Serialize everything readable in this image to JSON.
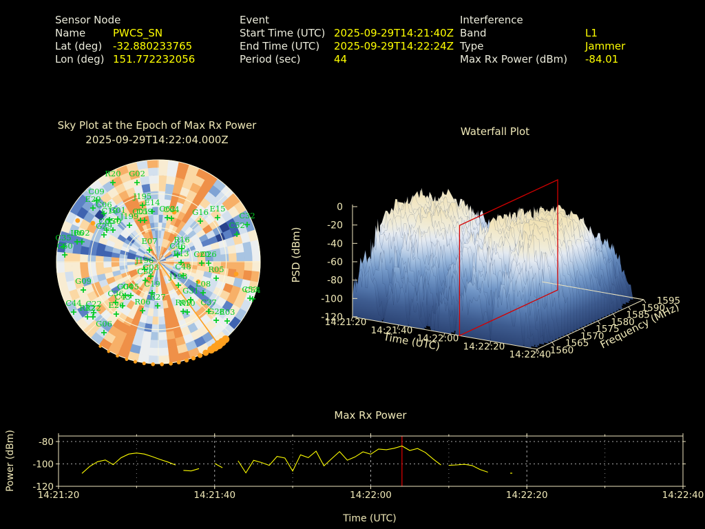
{
  "colors": {
    "background": "#000000",
    "header_label": "#ebebdb",
    "header_value": "#ffff00",
    "plot_text": "#f0e9b8",
    "axis_line": "#efe6c0",
    "grid_dots": "#c8c8c8",
    "satellite_green": "#00cc22",
    "orange_marker": "#ffa01e",
    "series_yellow": "#ffff00",
    "highlight_red": "#d40000"
  },
  "header": {
    "columns": [
      {
        "title": "Sensor Node",
        "rows": [
          {
            "label": "Name",
            "value": "PWCS_SN"
          },
          {
            "label": "Lat (deg)",
            "value": "-32.880233765"
          },
          {
            "label": "Lon (deg)",
            "value": "151.772232056"
          }
        ]
      },
      {
        "title": "Event",
        "rows": [
          {
            "label": "Start Time (UTC)",
            "value": "2025-09-29T14:21:40Z"
          },
          {
            "label": "End Time (UTC)",
            "value": "2025-09-29T14:22:24Z"
          },
          {
            "label": "Period (sec)",
            "value": "44"
          }
        ]
      },
      {
        "title": "Interference",
        "rows": [
          {
            "label": "Band",
            "value": "L1"
          },
          {
            "label": "Type",
            "value": "Jammer"
          },
          {
            "label": "Max Rx Power (dBm)",
            "value": "-84.01"
          }
        ]
      }
    ]
  },
  "chart_data": [
    {
      "type": "heatmap",
      "subtype": "polar-skyplot",
      "title_line1": "Sky Plot at the Epoch of Max Rx Power",
      "title_line2": "2025-09-29T14:22:04.000Z",
      "elevation_rings_deg": [
        0,
        30,
        60
      ],
      "azimuth_spokes_deg": [
        0,
        45,
        90,
        135,
        180,
        225,
        270,
        315
      ],
      "palette": [
        "#27418c",
        "#3f63b0",
        "#5b80c4",
        "#7fa3d4",
        "#a8c4e2",
        "#d3e0ee",
        "#eceff0",
        "#f8ecd2",
        "#fbd8a4",
        "#f7b068",
        "#ef9048"
      ],
      "heatmap": {
        "az_bins": 60,
        "el_bins": 13,
        "encoding": "palette index 0-10, rows outer ring last",
        "rows": [
          "25a88a347651346aa68724676778a44679aa7866587996034630378aa834",
          "3599aa569924868a98584365888aa5436996486679456820385368aa7843",
          "558889438442675965453046865aa53359aa76967868a942553557598853",
          "4599aa635664775a97783357988aa68548897578aa774711365457699a43",
          "648789444753555898753388966aa663278a99a8795455426531457a8934",
          "3589a9564666698987773155765a854548666574784799247726666aaa45",
          "58889a545732643784683267767aa6575a79587269786413675535598853",
          "66a68a688a52744896554285647aa5856a766896854888117655748aa966",
          "64a98a656830654987675399776aa4524a987887995664224434535aa744",
          "84978a8686025789a7a86586647a96465aaa769787399713795056898627",
          "87989a5565118649949925677769a5565a99345477877822783438787756",
          "76a88a3597356448a68876663248a6663a98586278657842461355498975",
          "76a8aa469833766798654157579aa7568a9a487547776512752246789859"
        ]
      },
      "satellites": [
        {
          "id": "R20",
          "az": 330.1,
          "el": 9.4
        },
        {
          "id": "G02",
          "az": 344.9,
          "el": 17.6
        },
        {
          "id": "C09",
          "az": 314.7,
          "el": 13.0
        },
        {
          "id": "E29",
          "az": 309.4,
          "el": 15.3
        },
        {
          "id": "C06",
          "az": 311.5,
          "el": 25.8
        },
        {
          "id": "C10",
          "az": 310.7,
          "el": 33.1
        },
        {
          "id": "G01",
          "az": 316.4,
          "el": 38.0
        },
        {
          "id": "J195",
          "az": 344.3,
          "el": 38.2
        },
        {
          "id": "E14",
          "az": 353.0,
          "el": 45.3
        },
        {
          "id": "C01",
          "az": 336.6,
          "el": 50.2
        },
        {
          "id": "C59",
          "az": 341.6,
          "el": 51.5
        },
        {
          "id": "J199",
          "az": 321.6,
          "el": 48.9
        },
        {
          "id": "C05",
          "az": 301.5,
          "el": 36.5
        },
        {
          "id": "G30",
          "az": 304.9,
          "el": 41.1
        },
        {
          "id": "G29",
          "az": 296.3,
          "el": 36.4
        },
        {
          "id": "C62",
          "az": 11.5,
          "el": 50.3
        },
        {
          "id": "C64",
          "az": 16.8,
          "el": 50.0
        },
        {
          "id": "G16",
          "az": 46.0,
          "el": 38.4
        },
        {
          "id": "E15",
          "az": 53.3,
          "el": 24.8
        },
        {
          "id": "C32",
          "az": 67.3,
          "el": 5.0
        },
        {
          "id": "C52",
          "az": 70.7,
          "el": 16.5
        },
        {
          "id": "I06",
          "az": 283.8,
          "el": 16.1
        },
        {
          "id": "R02",
          "az": 284.6,
          "el": 20.2
        },
        {
          "id": "C35",
          "az": 279.1,
          "el": 5.0
        },
        {
          "id": "C60",
          "az": 274.2,
          "el": 7.1
        },
        {
          "id": "E07",
          "az": 322.6,
          "el": 77.0
        },
        {
          "id": "R16",
          "az": 60.8,
          "el": 66.3
        },
        {
          "id": "C46",
          "az": 70.3,
          "el": 71.9
        },
        {
          "id": "E13",
          "az": 91.7,
          "el": 69.9
        },
        {
          "id": "C20",
          "az": 91.8,
          "el": 51.7
        },
        {
          "id": "C26",
          "az": 91.6,
          "el": 45.6
        },
        {
          "id": "J196",
          "az": 241.2,
          "el": 76.1
        },
        {
          "id": "G03",
          "az": 207.6,
          "el": 75.6
        },
        {
          "id": "C38",
          "az": 215.1,
          "el": 69.9
        },
        {
          "id": "C48",
          "az": 119.1,
          "el": 65.0
        },
        {
          "id": "G09",
          "az": 249.4,
          "el": 19.2
        },
        {
          "id": "C19",
          "az": 191.3,
          "el": 62.1
        },
        {
          "id": "J193",
          "az": 139.5,
          "el": 62.8
        },
        {
          "id": "L08",
          "az": 124.7,
          "el": 41.9
        },
        {
          "id": "R05",
          "az": 105.9,
          "el": 36.9
        },
        {
          "id": "G31",
          "az": 139.5,
          "el": 46.0
        },
        {
          "id": "G04",
          "az": 224.4,
          "el": 48.3
        },
        {
          "id": "G05",
          "az": 219.2,
          "el": 51.5
        },
        {
          "id": "C36",
          "az": 226.4,
          "el": 38.0
        },
        {
          "id": "C43",
          "az": 219.1,
          "el": 39.9
        },
        {
          "id": "R27",
          "az": 180.9,
          "el": 51.1
        },
        {
          "id": "R06",
          "az": 197.9,
          "el": 44.6
        },
        {
          "id": "R09",
          "az": 153.4,
          "el": 41.0
        },
        {
          "id": "R10",
          "az": 150.1,
          "el": 38.8
        },
        {
          "id": "C37",
          "az": 134.6,
          "el": 27.6
        },
        {
          "id": "C44",
          "az": 239.3,
          "el": 3.0
        },
        {
          "id": "C22",
          "az": 231.8,
          "el": 17.3
        },
        {
          "id": "R12",
          "az": 232.2,
          "el": 10.7
        },
        {
          "id": "R22",
          "az": 229.9,
          "el": 14.5
        },
        {
          "id": "E26",
          "az": 218.8,
          "el": 30.7
        },
        {
          "id": "G28",
          "az": 135.3,
          "el": 17.3
        },
        {
          "id": "E03",
          "az": 130.7,
          "el": 9.8
        },
        {
          "id": "C53",
          "az": 111.7,
          "el": 2.9
        },
        {
          "id": "C54",
          "az": 111.5,
          "el": 0.5
        },
        {
          "id": "G06",
          "az": 217.5,
          "el": 11.1
        }
      ],
      "marker_glyph": "+",
      "jammer": {
        "bearing_az_deg": 144,
        "rim_dots_az_deg": [
          139,
          141.5,
          144,
          146.5,
          149,
          152.5,
          156,
          160,
          164,
          168.5,
          173,
          178,
          183,
          188,
          193,
          198,
          203.5,
          209,
          214.5
        ],
        "rim_dot_sizes": [
          5.5,
          6,
          6.5,
          6,
          5.5,
          4.5,
          3.6,
          3.2,
          3,
          3,
          2.8,
          2.8,
          2.8,
          2.6,
          2.6,
          2.4,
          2.4,
          2.2,
          2.2
        ],
        "sky_dots": [
          {
            "az": 297,
            "el": 10,
            "size": 3.4
          },
          {
            "az": 300.5,
            "el": 22.9,
            "size": 3.4
          },
          {
            "az": 17.7,
            "el": 44,
            "size": 3.4
          },
          {
            "az": 99,
            "el": 20.4,
            "size": 3.4
          },
          {
            "az": 116.6,
            "el": 50.6,
            "size": 3.2
          }
        ]
      }
    },
    {
      "type": "heatmap",
      "subtype": "3d-waterfall-surface",
      "title": "Waterfall Plot",
      "zlabel": "PSD (dBm)",
      "xlabel": "Time (UTC)",
      "ylabel": "Frequency (MHz)",
      "zlim": [
        -120,
        0
      ],
      "z_ticks": [
        0,
        -20,
        -40,
        -60,
        -80,
        -100,
        -120
      ],
      "t_ticks": [
        "14:21:20",
        "14:21:40",
        "14:22:00",
        "14:22:20",
        "14:22:40"
      ],
      "f_ticks": [
        1560,
        1565,
        1570,
        1575,
        1580,
        1585,
        1590,
        1595
      ],
      "highlight_time": "14:22:04",
      "surface": {
        "nt": 100,
        "nf": 36,
        "t_range": [
          "14:21:20",
          "14:22:40"
        ],
        "f_range_mhz": [
          1560,
          1595
        ],
        "encoding": "base36 char c: PSD dBm = -120 + c*120/35; rows = freq slices front(1560) first",
        "rows": [
          "6c8bdaiaahdcb52201478b6d78cca305955832100008091a9b7a40004cd8gd7cbdccea699607bhbfcihbg966cda30b330000",
          "caefcdefcbdc946046cb9gddbbfaf368c8e38400065578979875700a4dcdghhghffeied4316cdeiiiegjkckfhegcd8340100",
          "bigdfijgdffflbb795ahhhhdcggddcc9bfg8f04204b65daa9e8b10005ahfhejhefdeeeaf75cbggfobmgggkmlgi9e9dd55000",
          "fhkgihngefkhlffbbanicddhbkggga76a9f6daa353baae7d9he9964acfgflkekijhkfn9eb78gliljmjlomlnjikcdbd7b2300",
          "idchhlkunlke9b9f6cdcjhiednjkcge9dgcfiff5056eciagdid9a684c9ihhejjlgrjojjiahadgjinponokophmekeebf70610",
          "feeklohjmpnogibd9hlmqllqjkpjjdehgglhih76a4fgidhgemged46bioirmmkehrnlnejkjfhignoqnqstolumnjlaifbac312",
          "mclijoopkmpkoikdjmqmqonkqjtqjhkhklfkidbdabeijflhklfid78ddiqppmlqqmqopnnfjgkpqqrpulsxwsuyoomdmh5fe761",
          "hqnnlnppstrmpkighiksplninpprokhojkpgnidb9heiiljjooolfbehhjnqrorukhrqqskihrnmsktrtmuuutormlrirnlhad63",
          "monqpunrpuspqnnhmnooqprnqpqqsnnmnominhfhhigjlmknnnomhbdgmnsnssoropstqtsrppqrtwtwvtvpvvuulqqqmmhhgf99",
          "pqsuutuustttnrrnmrqruvsuuuwwsrorpqormnlcghlplooopspoljlorstwxyuuttvsuswtsprtsxyyyuvyywvwtuurprmlchdc",
          "moorssvutvssusqplosrsutsutvqtrtqrrpjonjihglpmpnqhnppnlinostxxwtustvuuvvrlpsttywxxyxxwxxxxvsppnnigcac",
          "pqsutxxsuuxnstttrrrwwuuvsuuxuwssqpsnsqmkfmnioporlrppnhnoqtuvyvuvxruwxvwutrtvvyyyyyyyyyyvxuvrrpoiiffc",
          "qrrutwnvuwwttsprouvsuussuwvuwvututsqppnmkmmmmpnqpuqrmklnstwxxwxuustvwvwruqstxxyxwyyyyywrvttqqnlliifb",
          "pssvvvvuvvvtstupputvuuttttwuvtusqqqsrrnprnmploorqsqsmnnoqqvtxxuqvvtwxvvwsuvvvyyxsyxyxyyvussqsrnjhgfd",
          "morusussvotttusqrtrvpwursssuvptrtroqonnpognmlkmnmpqmmmmnpsuqtwtvsstuuwxtpqvuvxwwvtvwxwwwuvurkqllieda",
          "qrqrtwquwxvuutstqrwwtvuttsutwvsorooorompnllonponoqpokmlmqtwvxtuvruunwtvupuvvvxvxyyyvxxwvwtorrrldiecc",
          "prtutuwtrtttsuttrrruvrsrttvwwwtrsoropqimlnmnopmnrqqnnopkrnvsuvptvtuuvuwvxvxyyxyywuwyyvxqvtsppmkiggdb",
          "rqqstvwxvxwwuurtrvvuvvssrvtvwrqrppsmtoopmmnpqoqnqrsrrnnprsvvsxtwxtxwxqywwyyyxyytyyxyyxxxuwrspolkjfcb",
          "nrqvtwtxvussvsuvrtquwwtrsntutusrrromommnmompononotrstssrsvvsxuxutwxpyuvyyyxywyyxxxyyyvxwwvoqqqnmihe8",
          "lmptsuxuuvuutuovussvuuttruturvruorrpoplmfnnoknnmnkqrposqrttwwuvtvsuuxuyxvvvxyxwxwvxytvyvstuqrqmjbfc6",
          "llpstrstttlrtsuvuvstqroqmtuvtuonqpnmqmlpnnnnklmmmqrqooqrqtqrtuttttustrtuuuuywuvvvwwuvuvuusomlnkifeda",
          "ooqsotqvusupqtwvvxwvusnroqqsrtqrolpmljmmllmnkmmmpppooporrtsutnrsrqttquuqwtvxyyxxwruxwwwvsqooonigddba",
          "hgopntornrorpquuttttsqoknoosqpnppkkjkkllddhiikkjklkokloqrolqrqptqorrrtruuvwururtttsuvsutsoonlnjf9977",
          "ljmlmqqpqrrrrrssrttrqomqomornqmknjlijkgijggkhihkimmmmnommorrrrrrqoqjstrpstutsuusrtsstrrrqolllki8da66",
          "klnomorqhoppoqtsqqpqppmpnpoiqmmllfjiihhhhgghegijglklmkmlporsrqnonppqoopqpqsttuqsspsttsrqpqmlikeea970",
          "gghlnmnljnolnnkopssonmmlmoniikmmkiigiieefd9dfdgijfjkakijknmmnmhlnmnmpmponprssrprrrstqqoqonjkjjgfc834",
          "hegijlnmkknmlnopopnnkmjkmjopnldijfhfhgeedefhgeefbegjgjjjlhikknmlmmolmnooopmpnqlnmlnpnqonlfcjghe76954",
          "fgfdijililliimlmlonmnjjjkkikjmjihfhfgedbebefdcdeeeihgefdimkjnjliijdimmnolonoinkkimnnnjllmkifdgb88710",
          "ggggikijhjjiilhnnlljjijjikjikkdigfdg9fddfb69bebdbeffgigjhiijlklhhekjmclnkpqpqnnnnmkmilnnikjhefa45530",
          "cbcggijifjfhghjimllihfffgffgfgggdcecbabaccaab4c8ccceedgdhggijjhhfghjkhlkkjllkkjlljkjiijhgeefea855000",
          "44dbffhfgeefadhkjijhhcebccghf8a99a989625489aa99aaacbcdeffgefgfeeffiehfiijiijljhijgfjkijgedca89640000",
          "aabacdffcdcdeggdjghhe8aecedgcd98c99789657529768a9babbdd6dedffdgdffdeffifiijbcihifhhjghkhge5db7530000",
          "baceegdfeccaefdgghhgeeddbcfcdd99c99778676766486788b93bcadcffddeegfgdfgigiihgjhjjghhjiegib8a987640000",
          "57778bcbbe6cdecegf9dcdcc4ddcbd8977998356236526558894ba79a9ddebfdd7adeefgddhghfeegfffgdhedcb785300000",
          "65786aaaabaabaddbdccc9989a99a737571765032142245669988687b9bccbb8a99cdddcbeddcdede8bfbceaa89651300000",
          "564776888978898aada989568766785532432200000010031527637678788358878798a9ab9ccb9a8ab9abd8675440000000"
        ]
      },
      "colormap_stops": [
        [
          -120,
          "#2c4474"
        ],
        [
          -100,
          "#3e5c90"
        ],
        [
          -85,
          "#5579ae"
        ],
        [
          -70,
          "#7398c8"
        ],
        [
          -58,
          "#9cbadd"
        ],
        [
          -47,
          "#c6d6ea"
        ],
        [
          -38,
          "#e4eaf1"
        ],
        [
          -28,
          "#f0ecda"
        ],
        [
          -12,
          "#f2e5bd"
        ],
        [
          0,
          "#eedfb0"
        ]
      ]
    },
    {
      "type": "line",
      "title": "Max Rx Power",
      "xlabel": "Time (UTC)",
      "ylabel": "Power (dBm)",
      "x_ticks": [
        "14:21:20",
        "14:21:40",
        "14:22:00",
        "14:22:20",
        "14:22:40"
      ],
      "y_ticks": [
        -80,
        -100,
        -120
      ],
      "ylim": [
        -120,
        -74.4
      ],
      "x_range_sec": 80,
      "x_minor_step_sec": 10,
      "vline_time": "14:22:04",
      "vline_sec": 44,
      "points_sec_dbm": [
        [
          3,
          -108.5
        ],
        [
          4,
          -102.3
        ],
        [
          5,
          -98.0
        ],
        [
          6,
          -96.5
        ],
        [
          7,
          -100.7
        ],
        [
          8,
          -94.5
        ],
        [
          9,
          -91.2
        ],
        [
          10,
          -90.3
        ],
        [
          11,
          -91.2
        ],
        [
          12,
          -93.5
        ],
        [
          13,
          -96.0
        ],
        [
          14,
          -98.3
        ],
        [
          15,
          -101.0
        ],
        null,
        [
          16,
          -105.8
        ],
        [
          17,
          -106.3
        ],
        [
          18,
          -104.2
        ],
        null,
        [
          20,
          -99.6
        ],
        [
          21,
          -103.4
        ],
        null,
        [
          23,
          -97.2
        ],
        [
          24,
          -108.0
        ],
        [
          25,
          -96.8
        ],
        [
          26,
          -98.8
        ],
        [
          27,
          -101.3
        ],
        [
          28,
          -93.3
        ],
        [
          29,
          -94.8
        ],
        [
          30,
          -106.4
        ],
        [
          31,
          -91.9
        ],
        [
          32,
          -94.4
        ],
        [
          33,
          -88.6
        ],
        [
          34,
          -101.8
        ],
        [
          35,
          -95.3
        ],
        [
          36,
          -89.0
        ],
        [
          37,
          -96.7
        ],
        [
          38,
          -93.7
        ],
        [
          39,
          -89.2
        ],
        [
          40,
          -91.3
        ],
        [
          41,
          -86.7
        ],
        [
          42,
          -87.3
        ],
        [
          43,
          -86.0
        ],
        [
          44,
          -84.0
        ],
        [
          45,
          -88.0
        ],
        [
          46,
          -86.2
        ],
        [
          47,
          -89.8
        ],
        [
          48,
          -95.6
        ],
        [
          49,
          -101.0
        ],
        null,
        [
          50,
          -101.3
        ],
        [
          51,
          -100.9
        ],
        [
          52,
          -100.4
        ],
        [
          53,
          -101.5
        ],
        [
          54,
          -105.0
        ],
        [
          55,
          -107.4
        ],
        null,
        [
          58,
          -108.3
        ]
      ]
    }
  ]
}
